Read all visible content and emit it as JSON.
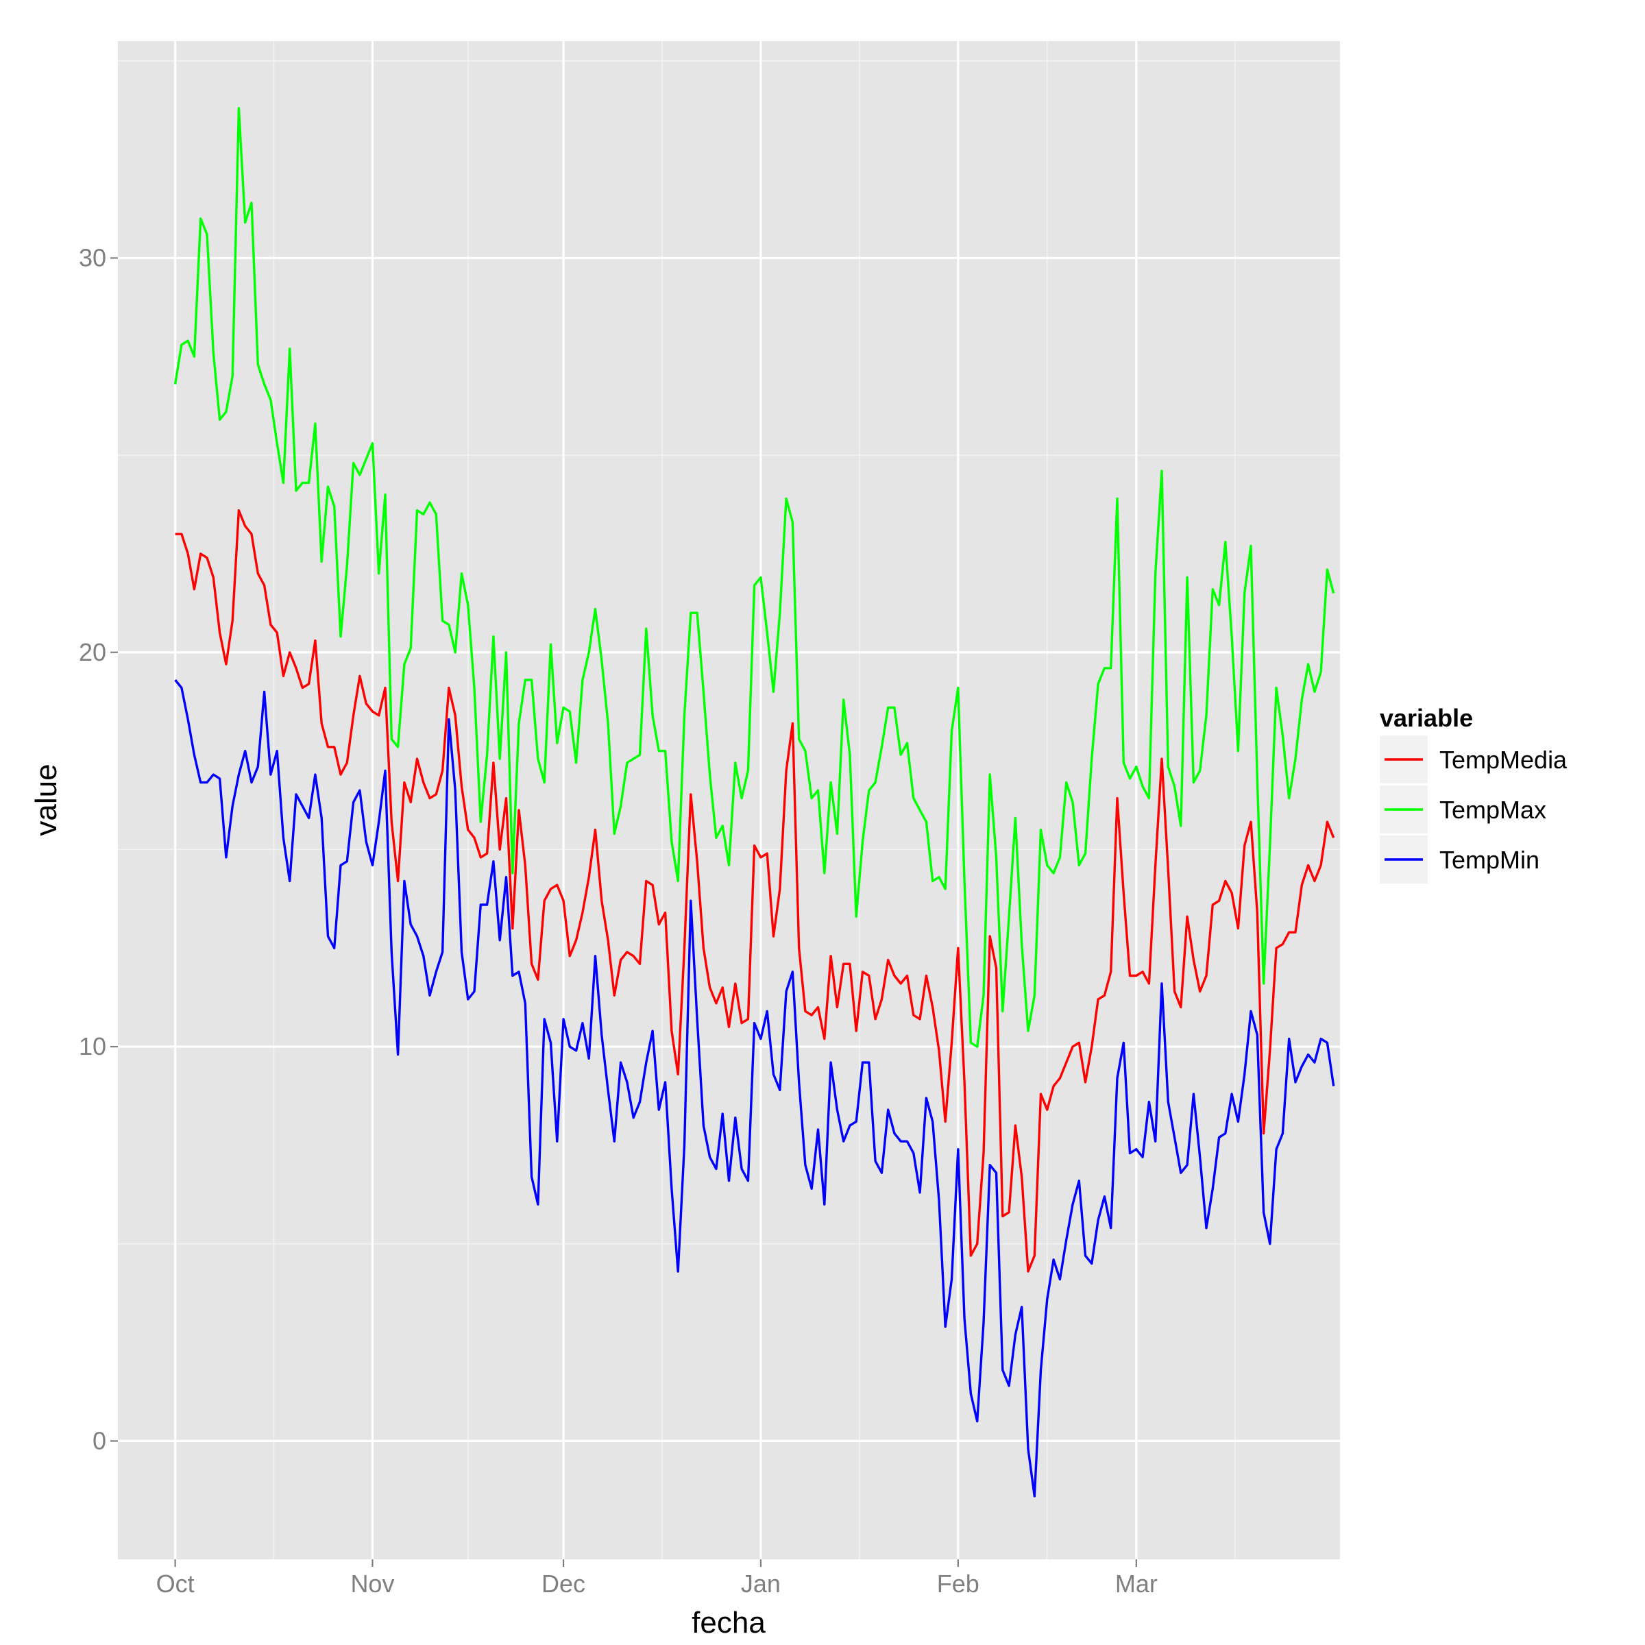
{
  "chart_data": {
    "type": "line",
    "xlabel": "fecha",
    "ylabel": "value",
    "x_tick_labels": [
      "Oct",
      "Nov",
      "Dec",
      "Jan",
      "Feb",
      "Mar"
    ],
    "y_ticks": [
      0,
      10,
      20,
      30
    ],
    "ylim": [
      -3.0,
      35.5
    ],
    "xlim": [
      "2013-09-22",
      "2014-04-02"
    ],
    "x_start": "2013-10-01",
    "x": [
      "2013-10-01",
      "2013-10-02",
      "2013-10-03",
      "2013-10-04",
      "2013-10-05",
      "2013-10-06",
      "2013-10-07",
      "2013-10-08",
      "2013-10-09",
      "2013-10-10",
      "2013-10-11",
      "2013-10-12",
      "2013-10-13",
      "2013-10-14",
      "2013-10-15",
      "2013-10-16",
      "2013-10-17",
      "2013-10-18",
      "2013-10-19",
      "2013-10-20",
      "2013-10-21",
      "2013-10-22",
      "2013-10-23",
      "2013-10-24",
      "2013-10-25",
      "2013-10-26",
      "2013-10-27",
      "2013-10-28",
      "2013-10-29",
      "2013-10-30",
      "2013-10-31",
      "2013-11-01",
      "2013-11-02",
      "2013-11-03",
      "2013-11-04",
      "2013-11-05",
      "2013-11-06",
      "2013-11-07",
      "2013-11-08",
      "2013-11-09",
      "2013-11-10",
      "2013-11-11",
      "2013-11-12",
      "2013-11-13",
      "2013-11-14",
      "2013-11-15",
      "2013-11-16",
      "2013-11-17",
      "2013-11-18",
      "2013-11-19",
      "2013-11-20",
      "2013-11-21",
      "2013-11-22",
      "2013-11-23",
      "2013-11-24",
      "2013-11-25",
      "2013-11-26",
      "2013-11-27",
      "2013-11-28",
      "2013-11-29",
      "2013-11-30",
      "2013-12-01",
      "2013-12-02",
      "2013-12-03",
      "2013-12-04",
      "2013-12-05",
      "2013-12-06",
      "2013-12-07",
      "2013-12-08",
      "2013-12-09",
      "2013-12-10",
      "2013-12-11",
      "2013-12-12",
      "2013-12-13",
      "2013-12-14",
      "2013-12-15",
      "2013-12-16",
      "2013-12-17",
      "2013-12-18",
      "2013-12-19",
      "2013-12-20",
      "2013-12-21",
      "2013-12-22",
      "2013-12-23",
      "2013-12-24",
      "2013-12-25",
      "2013-12-26",
      "2013-12-27",
      "2013-12-28",
      "2013-12-29",
      "2013-12-30",
      "2013-12-31",
      "2014-01-01",
      "2014-01-02",
      "2014-01-03",
      "2014-01-04",
      "2014-01-05",
      "2014-01-06",
      "2014-01-07",
      "2014-01-08",
      "2014-01-09",
      "2014-01-10",
      "2014-01-11",
      "2014-01-12",
      "2014-01-13",
      "2014-01-14",
      "2014-01-15",
      "2014-01-16",
      "2014-01-17",
      "2014-01-18",
      "2014-01-19",
      "2014-01-20",
      "2014-01-21",
      "2014-01-22",
      "2014-01-23",
      "2014-01-24",
      "2014-01-25",
      "2014-01-26",
      "2014-01-27",
      "2014-01-28",
      "2014-01-29",
      "2014-01-30",
      "2014-01-31",
      "2014-02-01",
      "2014-02-02",
      "2014-02-03",
      "2014-02-04",
      "2014-02-05",
      "2014-02-06",
      "2014-02-07",
      "2014-02-08",
      "2014-02-09",
      "2014-02-10",
      "2014-02-11",
      "2014-02-12",
      "2014-02-13",
      "2014-02-14",
      "2014-02-15",
      "2014-02-16",
      "2014-02-17",
      "2014-02-18",
      "2014-02-19",
      "2014-02-20",
      "2014-02-21",
      "2014-02-22",
      "2014-02-23",
      "2014-02-24",
      "2014-02-25",
      "2014-02-26",
      "2014-02-27",
      "2014-02-28",
      "2014-03-01",
      "2014-03-02",
      "2014-03-03",
      "2014-03-04",
      "2014-03-05",
      "2014-03-06",
      "2014-03-07",
      "2014-03-08",
      "2014-03-09",
      "2014-03-10",
      "2014-03-11",
      "2014-03-12",
      "2014-03-13",
      "2014-03-14",
      "2014-03-15",
      "2014-03-16",
      "2014-03-17",
      "2014-03-18",
      "2014-03-19",
      "2014-03-20",
      "2014-03-21",
      "2014-03-22",
      "2014-03-23",
      "2014-03-24",
      "2014-03-25",
      "2014-03-26",
      "2014-03-27",
      "2014-03-28",
      "2014-03-29",
      "2014-03-30",
      "2014-03-31",
      "2014-04-01"
    ],
    "series": [
      {
        "name": "TempMedia",
        "color": "#ff0000",
        "values": [
          23.0,
          23.0,
          22.5,
          21.6,
          22.5,
          22.4,
          21.9,
          20.5,
          19.7,
          20.8,
          23.6,
          23.2,
          23.0,
          22.0,
          21.7,
          20.7,
          20.5,
          19.4,
          20.0,
          19.6,
          19.1,
          19.2,
          20.3,
          18.2,
          17.6,
          17.6,
          16.9,
          17.2,
          18.4,
          19.4,
          18.7,
          18.5,
          18.4,
          19.1,
          15.7,
          14.2,
          16.7,
          16.2,
          17.3,
          16.7,
          16.3,
          16.4,
          17.0,
          19.1,
          18.4,
          16.6,
          15.5,
          15.3,
          14.8,
          14.9,
          17.2,
          15.0,
          16.3,
          13.0,
          16.0,
          14.6,
          12.1,
          11.7,
          13.7,
          14.0,
          14.1,
          13.7,
          12.3,
          12.7,
          13.4,
          14.3,
          15.5,
          13.7,
          12.7,
          11.3,
          12.2,
          12.4,
          12.3,
          12.1,
          14.2,
          14.1,
          13.1,
          13.4,
          10.4,
          9.3,
          12.5,
          16.4,
          14.7,
          12.5,
          11.5,
          11.1,
          11.5,
          10.5,
          11.6,
          10.6,
          10.7,
          15.1,
          14.8,
          14.9,
          12.8,
          14.0,
          17.0,
          18.2,
          12.5,
          10.9,
          10.8,
          11.0,
          10.2,
          12.3,
          11.0,
          12.1,
          12.1,
          10.4,
          11.9,
          11.8,
          10.7,
          11.2,
          12.2,
          11.8,
          11.6,
          11.8,
          10.8,
          10.7,
          11.8,
          11.0,
          9.9,
          8.1,
          10.1,
          12.5,
          9.1,
          4.7,
          5.0,
          7.3,
          12.8,
          12.0,
          5.7,
          5.8,
          8.0,
          6.7,
          4.3,
          4.7,
          8.8,
          8.4,
          9.0,
          9.2,
          9.6,
          10.0,
          10.1,
          9.1,
          10.0,
          11.2,
          11.3,
          11.9,
          16.3,
          13.9,
          11.8,
          11.8,
          11.9,
          11.6,
          14.6,
          17.3,
          14.5,
          11.4,
          11.0,
          13.3,
          12.2,
          11.4,
          11.8,
          13.6,
          13.7,
          14.2,
          13.9,
          13.0,
          15.1,
          15.7,
          13.4,
          7.8,
          9.9,
          12.5,
          12.6,
          12.9,
          12.9,
          14.1,
          14.6,
          14.2,
          14.6,
          15.7,
          15.3
        ]
      },
      {
        "name": "TempMax",
        "color": "#00ff00",
        "values": [
          26.8,
          27.8,
          27.9,
          27.5,
          31.0,
          30.6,
          27.6,
          25.9,
          26.1,
          27.0,
          33.8,
          30.9,
          31.4,
          27.3,
          26.8,
          26.4,
          25.3,
          24.3,
          27.7,
          24.1,
          24.3,
          24.3,
          25.8,
          22.3,
          24.2,
          23.7,
          20.4,
          22.2,
          24.8,
          24.5,
          24.9,
          25.3,
          22.0,
          24.0,
          17.8,
          17.6,
          19.7,
          20.1,
          23.6,
          23.5,
          23.8,
          23.5,
          20.8,
          20.7,
          20.0,
          22.0,
          21.2,
          19.1,
          15.7,
          17.4,
          20.4,
          17.3,
          20.0,
          14.4,
          18.2,
          19.3,
          19.3,
          17.3,
          16.7,
          20.2,
          17.7,
          18.6,
          18.5,
          17.2,
          19.3,
          20.0,
          21.1,
          19.8,
          18.2,
          15.4,
          16.1,
          17.2,
          17.3,
          17.4,
          20.6,
          18.4,
          17.5,
          17.5,
          15.2,
          14.2,
          18.4,
          21.0,
          21.0,
          19.0,
          16.9,
          15.3,
          15.6,
          14.6,
          17.2,
          16.3,
          17.0,
          21.7,
          21.9,
          20.5,
          19.0,
          21.0,
          23.9,
          23.3,
          17.8,
          17.5,
          16.3,
          16.5,
          14.4,
          16.7,
          15.4,
          18.8,
          17.4,
          13.3,
          15.2,
          16.5,
          16.7,
          17.6,
          18.6,
          18.6,
          17.4,
          17.7,
          16.3,
          16.0,
          15.7,
          14.2,
          14.3,
          14.0,
          18.0,
          19.1,
          14.2,
          10.1,
          10.0,
          11.3,
          16.9,
          14.8,
          10.9,
          13.3,
          15.8,
          12.6,
          10.4,
          11.3,
          15.5,
          14.6,
          14.4,
          14.8,
          16.7,
          16.2,
          14.6,
          14.9,
          17.3,
          19.2,
          19.6,
          19.6,
          23.9,
          17.2,
          16.8,
          17.1,
          16.6,
          16.3,
          22.0,
          24.6,
          17.1,
          16.6,
          15.6,
          21.9,
          16.7,
          17.0,
          18.4,
          21.6,
          21.2,
          22.8,
          20.4,
          17.5,
          21.5,
          22.7,
          16.8,
          11.6,
          15.1,
          19.1,
          17.9,
          16.3,
          17.3,
          18.8,
          19.7,
          19.0,
          19.5,
          22.1,
          21.5
        ]
      },
      {
        "name": "TempMin",
        "color": "#0000ff",
        "values": [
          19.3,
          19.1,
          18.3,
          17.4,
          16.7,
          16.7,
          16.9,
          16.8,
          14.8,
          16.1,
          16.9,
          17.5,
          16.7,
          17.1,
          19.0,
          16.9,
          17.5,
          15.3,
          14.2,
          16.4,
          16.1,
          15.8,
          16.9,
          15.8,
          12.8,
          12.5,
          14.6,
          14.7,
          16.2,
          16.5,
          15.2,
          14.6,
          15.7,
          17.0,
          12.4,
          9.8,
          14.2,
          13.1,
          12.8,
          12.3,
          11.3,
          11.9,
          12.4,
          18.3,
          16.5,
          12.4,
          11.2,
          11.4,
          13.6,
          13.6,
          14.7,
          12.7,
          14.3,
          11.8,
          11.9,
          11.1,
          6.7,
          6.0,
          10.7,
          10.1,
          7.6,
          10.7,
          10.0,
          9.9,
          10.6,
          9.7,
          12.3,
          10.3,
          8.9,
          7.6,
          9.6,
          9.1,
          8.2,
          8.6,
          9.6,
          10.4,
          8.4,
          9.1,
          6.4,
          4.3,
          7.5,
          13.7,
          10.7,
          8.0,
          7.2,
          6.9,
          8.3,
          6.6,
          8.2,
          6.9,
          6.6,
          10.6,
          10.2,
          10.9,
          9.3,
          8.9,
          11.4,
          11.9,
          9.1,
          7.0,
          6.4,
          7.9,
          6.0,
          9.6,
          8.4,
          7.6,
          8.0,
          8.1,
          9.6,
          9.6,
          7.1,
          6.8,
          8.4,
          7.8,
          7.6,
          7.6,
          7.3,
          6.3,
          8.7,
          8.1,
          6.1,
          2.9,
          4.1,
          7.4,
          3.1,
          1.2,
          0.5,
          3.0,
          7.0,
          6.8,
          1.8,
          1.4,
          2.7,
          3.4,
          -0.2,
          -1.4,
          1.8,
          3.6,
          4.6,
          4.1,
          5.1,
          6.0,
          6.6,
          4.7,
          4.5,
          5.6,
          6.2,
          5.4,
          9.2,
          10.1,
          7.3,
          7.4,
          7.2,
          8.6,
          7.6,
          11.6,
          8.6,
          7.7,
          6.8,
          7.0,
          8.8,
          7.2,
          5.4,
          6.4,
          7.7,
          7.8,
          8.8,
          8.1,
          9.3,
          10.9,
          10.3,
          5.8,
          5.0,
          7.4,
          7.8,
          10.2,
          9.1,
          9.5,
          9.8,
          9.6,
          10.2,
          10.1,
          9.0
        ]
      }
    ],
    "grid": true,
    "background": "#e5e5e5",
    "legend": {
      "title": "variable",
      "placement": "right",
      "entries": [
        "TempMedia",
        "TempMax",
        "TempMin"
      ]
    }
  }
}
